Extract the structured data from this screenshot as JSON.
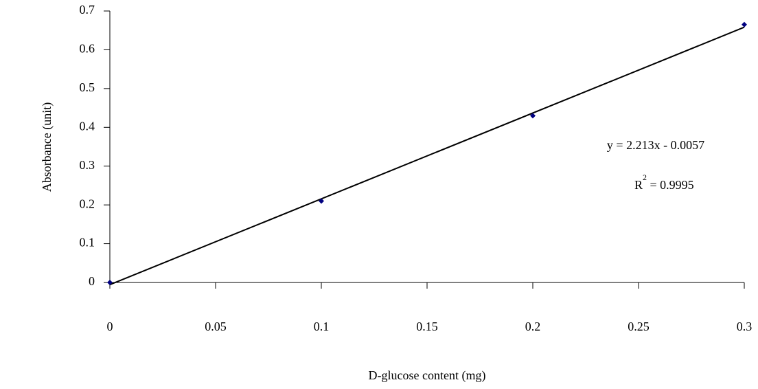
{
  "chart_data": {
    "type": "scatter",
    "x_label": "D-glucose content (mg)",
    "y_label": "Absorbance (unit)",
    "x": [
      0,
      0.1,
      0.2,
      0.3
    ],
    "values": [
      0,
      0.21,
      0.43,
      0.665
    ],
    "color": "#000080",
    "xlim": [
      0,
      0.3
    ],
    "xticks": [
      0,
      0.05,
      0.1,
      0.15,
      0.2,
      0.25,
      0.3
    ],
    "ylim": [
      0,
      0.7
    ],
    "yticks": [
      0,
      0.1,
      0.2,
      0.3,
      0.4,
      0.5,
      0.6,
      0.7
    ],
    "trendline": {
      "x": [
        0,
        0.3
      ],
      "values": [
        -0.0057,
        0.6582
      ],
      "color": "#000000"
    },
    "equation": "y = 2.213x - 0.0057",
    "r_squared": {
      "base": "R",
      "sup": "2",
      "rest": " = 0.9995"
    }
  }
}
